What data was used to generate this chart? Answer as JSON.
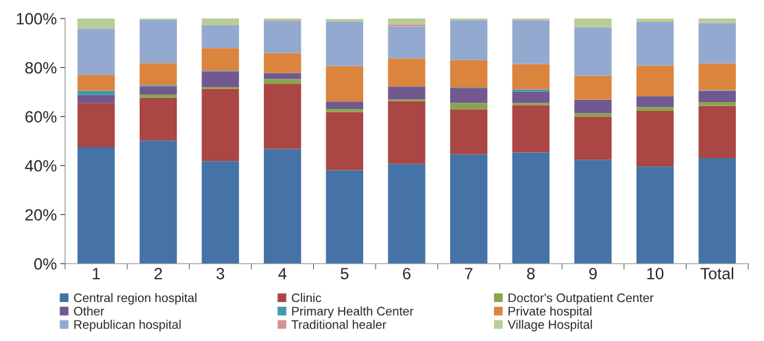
{
  "chart_data": {
    "type": "bar",
    "stacked": true,
    "categories": [
      "1",
      "2",
      "3",
      "4",
      "5",
      "6",
      "7",
      "8",
      "9",
      "10",
      "Total"
    ],
    "series": [
      {
        "name": "Central region hospital",
        "color": "#4572a7",
        "values": [
          47.5,
          50.2,
          41.8,
          46.8,
          38.1,
          40.7,
          44.6,
          45.4,
          42.4,
          39.6,
          43.0
        ]
      },
      {
        "name": "Clinic",
        "color": "#aa4643",
        "values": [
          18.1,
          17.5,
          29.6,
          26.6,
          23.8,
          25.6,
          18.4,
          19.2,
          17.6,
          22.7,
          21.4
        ]
      },
      {
        "name": "Doctor's Outpatient Center",
        "color": "#89a54e",
        "values": [
          0,
          1.3,
          0.7,
          1.9,
          1.2,
          0.7,
          2.6,
          1.0,
          1.3,
          1.5,
          1.5
        ]
      },
      {
        "name": "Other",
        "color": "#71588f",
        "values": [
          3.2,
          3.3,
          6.3,
          2.5,
          3.0,
          5.3,
          5.9,
          4.6,
          5.6,
          4.6,
          4.6
        ]
      },
      {
        "name": "Primary Health Center",
        "color": "#4198af",
        "values": [
          1.7,
          0.5,
          0.3,
          0,
          null,
          0,
          0.3,
          0.9,
          0,
          null,
          0.3
        ]
      },
      {
        "name": "Private hospital",
        "color": "#db843d",
        "values": [
          6.5,
          9.0,
          9.2,
          8.1,
          14.5,
          11.4,
          11.2,
          10.3,
          9.8,
          12.4,
          10.8
        ]
      },
      {
        "name": "Republican hospital",
        "color": "#93a9cf",
        "values": [
          18.9,
          17.8,
          9.3,
          13.1,
          18.2,
          13.1,
          16.4,
          17.8,
          19.8,
          17.8,
          16.6
        ]
      },
      {
        "name": "Traditional healer",
        "color": "#d19392",
        "values": [
          0,
          0,
          0,
          0.4,
          0,
          0.8,
          0,
          0.2,
          0,
          0,
          0
        ]
      },
      {
        "name": "Village Hospital",
        "color": "#b9cd96",
        "values": [
          4.1,
          0.4,
          2.8,
          0.6,
          1.0,
          2.4,
          0.6,
          0.6,
          3.5,
          1.3,
          1.8
        ]
      }
    ],
    "ylim": [
      0,
      100
    ],
    "yticks": [
      {
        "value": 0,
        "label": "0%"
      },
      {
        "value": 20,
        "label": "20%"
      },
      {
        "value": 40,
        "label": "40%"
      },
      {
        "value": 60,
        "label": "60%"
      },
      {
        "value": 80,
        "label": "80%"
      },
      {
        "value": 100,
        "label": "100%"
      }
    ],
    "grid": false,
    "legend": "bottom"
  }
}
